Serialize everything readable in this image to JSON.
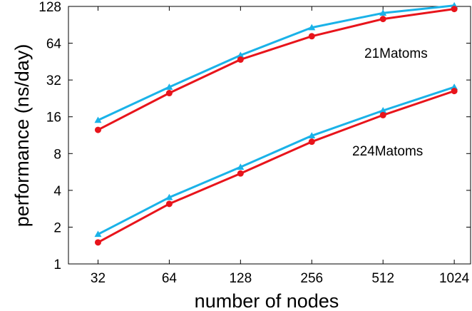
{
  "chart_data": {
    "type": "line",
    "xlabel": "number of nodes",
    "ylabel": "performance (ns/day)",
    "x_scale": "log2",
    "y_scale": "log2",
    "x": [
      32,
      64,
      128,
      256,
      512,
      1024
    ],
    "x_ticks": [
      "32",
      "64",
      "128",
      "256",
      "512",
      "1024"
    ],
    "y_ticks": [
      "1",
      "2",
      "4",
      "8",
      "16",
      "32",
      "64",
      "128"
    ],
    "xlim": [
      24,
      1200
    ],
    "ylim": [
      1,
      128
    ],
    "grid": false,
    "annotations": [
      "21Matoms",
      "224Matoms"
    ],
    "series": [
      {
        "group": "21Matoms",
        "color": "#1ab2e8",
        "marker": "triangle",
        "values": [
          15,
          28,
          51,
          86,
          113,
          130
        ]
      },
      {
        "group": "21Matoms",
        "color": "#e8141b",
        "marker": "circle",
        "values": [
          12.5,
          25,
          47,
          73,
          101,
          122
        ]
      },
      {
        "group": "224Matoms",
        "color": "#1ab2e8",
        "marker": "triangle",
        "values": [
          1.75,
          3.5,
          6.2,
          11.2,
          18,
          28
        ]
      },
      {
        "group": "224Matoms",
        "color": "#e8141b",
        "marker": "circle",
        "values": [
          1.5,
          3.1,
          5.5,
          10,
          16.5,
          26
        ]
      }
    ]
  }
}
